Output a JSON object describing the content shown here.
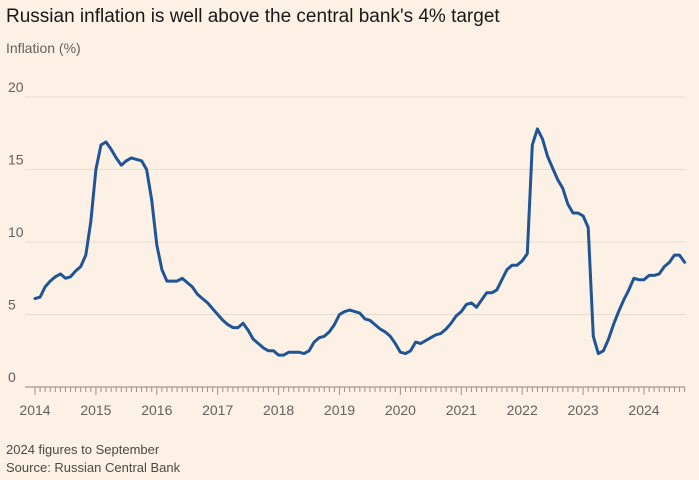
{
  "title": "Russian inflation is well above the central bank's 4% target",
  "note": "2024 figures to September",
  "source": "Source: Russian Central Bank",
  "colors": {
    "background": "#fdf1e5",
    "line": "#1f5596",
    "grid": "#e8ddd2",
    "axis": "#66605c"
  },
  "chart_data": {
    "type": "line",
    "title": "Russian inflation is well above the central bank's 4% target",
    "ylabel": "Inflation (%)",
    "xlabel": "",
    "ylim": [
      0,
      20
    ],
    "yticks": [
      0,
      5,
      10,
      15,
      20
    ],
    "xticks": [
      "2014",
      "2015",
      "2016",
      "2017",
      "2018",
      "2019",
      "2020",
      "2021",
      "2022",
      "2023",
      "2024"
    ],
    "grid": "horizontal",
    "x_start": "2014-01",
    "x_end": "2024-09",
    "series": [
      {
        "values": [
          6.1,
          6.2,
          6.9,
          7.3,
          7.6,
          7.8,
          7.5,
          7.6,
          8.0,
          8.3,
          9.1,
          11.4,
          15.0,
          16.7,
          16.9,
          16.4,
          15.8,
          15.3,
          15.6,
          15.8,
          15.7,
          15.6,
          15.0,
          12.9,
          9.8,
          8.1,
          7.3,
          7.3,
          7.3,
          7.5,
          7.2,
          6.9,
          6.4,
          6.1,
          5.8,
          5.4,
          5.0,
          4.6,
          4.3,
          4.1,
          4.1,
          4.4,
          3.9,
          3.3,
          3.0,
          2.7,
          2.5,
          2.5,
          2.2,
          2.2,
          2.4,
          2.4,
          2.4,
          2.3,
          2.5,
          3.1,
          3.4,
          3.5,
          3.8,
          4.3,
          5.0,
          5.2,
          5.3,
          5.2,
          5.1,
          4.7,
          4.6,
          4.3,
          4.0,
          3.8,
          3.5,
          3.0,
          2.4,
          2.3,
          2.5,
          3.1,
          3.0,
          3.2,
          3.4,
          3.6,
          3.7,
          4.0,
          4.4,
          4.9,
          5.2,
          5.7,
          5.8,
          5.5,
          6.0,
          6.5,
          6.5,
          6.7,
          7.4,
          8.1,
          8.4,
          8.4,
          8.7,
          9.2,
          16.7,
          17.8,
          17.1,
          15.9,
          15.1,
          14.3,
          13.7,
          12.6,
          12.0,
          12.0,
          11.8,
          11.0,
          3.5,
          2.3,
          2.5,
          3.3,
          4.3,
          5.2,
          6.0,
          6.7,
          7.5,
          7.4,
          7.4,
          7.7,
          7.7,
          7.8,
          8.3,
          8.6,
          9.1,
          9.1,
          8.6
        ]
      }
    ]
  }
}
